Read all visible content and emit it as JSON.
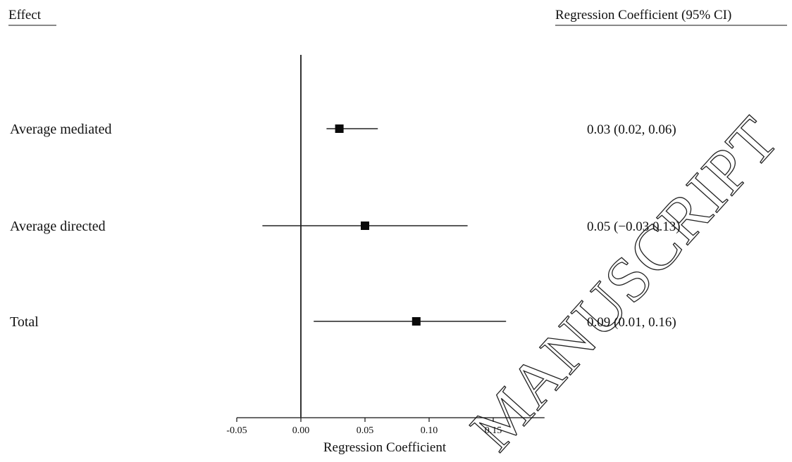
{
  "headers": {
    "left": "Effect",
    "right": "Regression Coefficient (95% CI)"
  },
  "watermark": "MANUSCRIPT",
  "chart_data": {
    "type": "forest",
    "title": "",
    "xlabel": "Regression Coefficient",
    "xlim": [
      -0.05,
      0.19
    ],
    "xticks": [
      -0.05,
      0.0,
      0.05,
      0.1,
      0.15
    ],
    "xtick_labels": [
      "-0.05",
      "0.00",
      "0.05",
      "0.10",
      "0.15"
    ],
    "reference_line": 0.0,
    "rows": [
      {
        "label": "Average mediated",
        "estimate": 0.03,
        "lower": 0.02,
        "upper": 0.06,
        "ci_text": "0.03 (0.02, 0.06)"
      },
      {
        "label": "Average directed",
        "estimate": 0.05,
        "lower": -0.03,
        "upper": 0.13,
        "ci_text": "0.05 (−0.03 0.13)"
      },
      {
        "label": "Total",
        "estimate": 0.09,
        "lower": 0.01,
        "upper": 0.16,
        "ci_text": "0.09 (0.01, 0.16)"
      }
    ]
  }
}
